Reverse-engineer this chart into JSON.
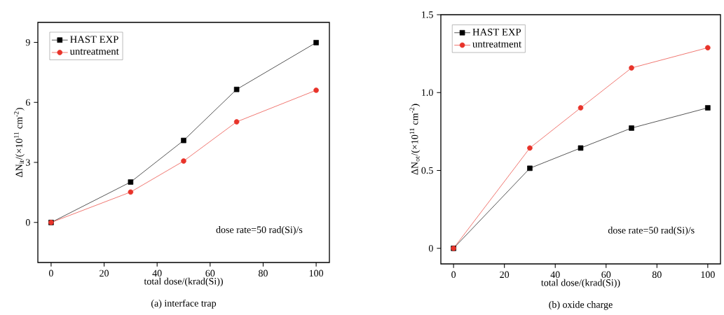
{
  "chart_data": [
    {
      "type": "line",
      "title": "(a) interface trap",
      "xlabel": "total dose/(krad(Si))",
      "ylabel": "ΔN$_{it}$/(×10$^{11}$ cm$^{-2}$)",
      "x": [
        0,
        30,
        50,
        70,
        100
      ],
      "series": [
        {
          "name": "HAST EXP",
          "color": "#000000",
          "marker": "square",
          "values": [
            0,
            2.02,
            4.1,
            6.65,
            8.99
          ]
        },
        {
          "name": "untreatment",
          "color": "#e8332a",
          "marker": "circle",
          "values": [
            0,
            1.52,
            3.07,
            5.03,
            6.61
          ]
        }
      ],
      "xlim": [
        -5,
        105
      ],
      "ylim": [
        -2,
        10
      ],
      "xticks": [
        0,
        20,
        40,
        60,
        80,
        100
      ],
      "yticks": [
        0,
        3,
        6,
        9
      ],
      "legend": "top left",
      "annotations": [
        "dose rate=50 rad(Si)/s"
      ]
    },
    {
      "type": "line",
      "title": "(b) oxide charge",
      "xlabel": "total dose/(krad(Si))",
      "ylabel": "ΔN$_{ot}$/(×10$^{11}$ cm$^{-2}$)",
      "x": [
        0,
        30,
        50,
        70,
        100
      ],
      "series": [
        {
          "name": "HAST EXP",
          "color": "#000000",
          "marker": "square",
          "values": [
            0,
            0.514,
            0.644,
            0.772,
            0.902
          ]
        },
        {
          "name": "untreatment",
          "color": "#e8332a",
          "marker": "circle",
          "values": [
            0,
            0.644,
            0.902,
            1.158,
            1.288
          ]
        }
      ],
      "xlim": [
        -5,
        105
      ],
      "ylim": [
        -0.1,
        1.5
      ],
      "xticks": [
        0,
        20,
        40,
        60,
        80,
        100
      ],
      "yticks": [
        0,
        {
          "value": 0.5,
          "label": "0.5"
        },
        {
          "value": 1.0,
          "label": "1.0"
        },
        1.5
      ],
      "legend": "top left",
      "annotations": [
        "dose rate=50 rad(Si)/s"
      ]
    }
  ]
}
